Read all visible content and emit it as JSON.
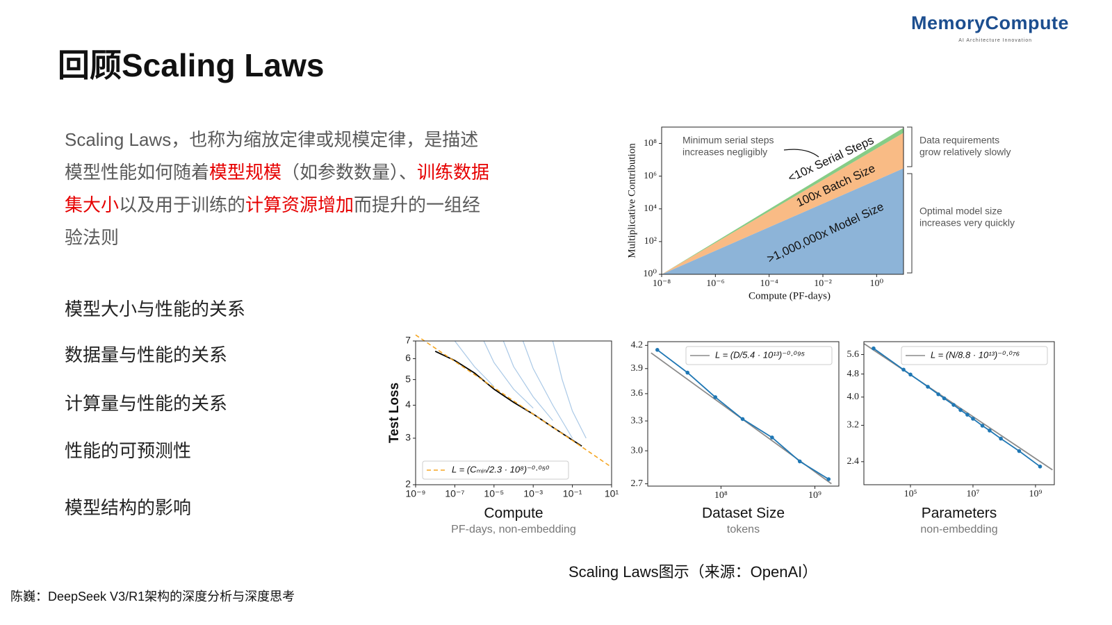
{
  "header": {
    "title": "回顾Scaling Laws",
    "logo": "MemoryCompute",
    "logo_tagline": "AI Architecture Innovation"
  },
  "intro": {
    "segments": [
      {
        "text": "Scaling Laws，也称为缩放定律或规模定律，是描述模型性能如何随着",
        "highlight": false
      },
      {
        "text": "模型规模",
        "highlight": true
      },
      {
        "text": "（如参数数量）、",
        "highlight": false
      },
      {
        "text": "训练数据集大小",
        "highlight": true
      },
      {
        "text": "以及用于训练的",
        "highlight": false
      },
      {
        "text": "计算资源增加",
        "highlight": true
      },
      {
        "text": "而提升的一组经验法则",
        "highlight": false
      }
    ]
  },
  "topics": [
    "模型大小与性能的关系",
    "数据量与性能的关系",
    "计算量与性能的关系",
    "性能的可预测性",
    "模型结构的影响"
  ],
  "caption": "Scaling Laws图示（来源：OpenAI）",
  "footer": "陈巍：DeepSeek V3/R1架构的深度分析与深度思考",
  "chart_data": [
    {
      "type": "area",
      "stacked": true,
      "xlog": true,
      "ylog": true,
      "xlabel": "Compute (PF-days)",
      "ylabel": "Multiplicative Contribution",
      "x": [
        1e-08,
        10
      ],
      "series": [
        {
          "name": ">1,000,000x Model Size",
          "color": "#8db4d8",
          "values": [
            1,
            3000000
          ]
        },
        {
          "name": "100x Batch Size",
          "color": "#f9bb85",
          "values": [
            1,
            150
          ]
        },
        {
          "name": "<10x Serial Steps",
          "color": "#86cc86",
          "values": [
            1,
            2
          ]
        }
      ],
      "annotations": [
        [
          "Minimum serial steps",
          "increases negligibly"
        ],
        [
          "Data requirements",
          "grow relatively slowly"
        ],
        [
          "Optimal model size",
          "increases very quickly"
        ]
      ],
      "xlim": [
        1e-08,
        10
      ],
      "ylim": [
        1,
        1000000000.0
      ],
      "xticks": [
        {
          "value": 1e-08,
          "label": "10⁻⁸"
        },
        {
          "value": 1e-06,
          "label": "10⁻⁶"
        },
        {
          "value": 0.0001,
          "label": "10⁻⁴"
        },
        {
          "value": 0.01,
          "label": "10⁻²"
        },
        {
          "value": 1,
          "label": "10⁰"
        }
      ],
      "yticks": [
        {
          "value": 1,
          "label": "10⁰"
        },
        {
          "value": 100,
          "label": "10²"
        },
        {
          "value": 10000,
          "label": "10⁴"
        },
        {
          "value": 1000000,
          "label": "10⁶"
        },
        {
          "value": 100000000,
          "label": "10⁸"
        }
      ]
    },
    {
      "type": "line",
      "xlog": true,
      "ylog": true,
      "legend": "lower left",
      "xlabel": "Compute",
      "xsublabel": "PF-days, non-embedding",
      "ylabel": "Test Loss",
      "series": [
        {
          "color": "#a9c8e6",
          "x": [
            1e-07,
            1e-06,
            1e-05
          ],
          "values": [
            7,
            5.6,
            4.7
          ]
        },
        {
          "color": "#a9c8e6",
          "x": [
            3e-06,
            1e-05,
            0.0001,
            0.001
          ],
          "values": [
            7,
            5.8,
            4.6,
            3.9
          ]
        },
        {
          "color": "#a9c8e6",
          "x": [
            3e-05,
            0.0001,
            0.001,
            0.01
          ],
          "values": [
            7,
            5.6,
            4.3,
            3.5
          ]
        },
        {
          "color": "#a9c8e6",
          "x": [
            0.0003,
            0.001,
            0.01,
            0.1
          ],
          "values": [
            7,
            5.5,
            4,
            3
          ]
        },
        {
          "color": "#a9c8e6",
          "x": [
            0.01,
            0.03,
            0.1,
            0.5
          ],
          "values": [
            7,
            5,
            3.8,
            3
          ]
        },
        {
          "color": "#000000",
          "x": [
            1e-08,
            1e-07,
            1e-06,
            1e-05,
            0.0001,
            0.001,
            0.01,
            0.1,
            0.3
          ],
          "values": [
            6.4,
            5.9,
            5.3,
            4.6,
            4.1,
            3.7,
            3.3,
            2.95,
            2.8
          ]
        },
        {
          "name": "L = (Cₘᵢₙ/2.3 · 10⁸)⁻⁰·⁰⁵⁰",
          "color": "#f5a623",
          "dash": true,
          "x": [
            1e-09,
            1e-07,
            1e-05,
            0.001,
            0.1,
            10
          ],
          "values": [
            7.38,
            5.86,
            4.66,
            3.7,
            2.94,
            2.33
          ]
        }
      ],
      "xlim": [
        1e-09,
        10
      ],
      "ylim": [
        2,
        7
      ],
      "xticks": [
        {
          "value": 1e-09,
          "label": "10⁻⁹"
        },
        {
          "value": 1e-07,
          "label": "10⁻⁷"
        },
        {
          "value": 1e-05,
          "label": "10⁻⁵"
        },
        {
          "value": 0.001,
          "label": "10⁻³"
        },
        {
          "value": 0.1,
          "label": "10⁻¹"
        },
        {
          "value": 10,
          "label": "10¹"
        }
      ],
      "yticks": [
        2,
        3,
        4,
        5,
        6,
        7
      ]
    },
    {
      "type": "line",
      "xlog": true,
      "ylog": true,
      "legend": "upper right",
      "xlabel": "Dataset Size",
      "xsublabel": "tokens",
      "series": [
        {
          "name": "L = (D/5.4 · 10¹³)⁻⁰·⁰⁹⁵",
          "color": "#8a8a8a",
          "x": [
            18000000,
            1500000000
          ],
          "values": [
            4.1,
            2.7
          ]
        },
        {
          "color": "#1f77b4",
          "marker": true,
          "x": [
            21000000,
            44000000,
            87000000,
            170000000,
            350000000,
            690000000,
            1400000000
          ],
          "values": [
            4.14,
            3.85,
            3.56,
            3.32,
            3.13,
            2.9,
            2.74
          ]
        }
      ],
      "xlim": [
        16600000,
        1800000000
      ],
      "ylim": [
        2.68,
        4.25
      ],
      "xticks": [
        {
          "value": 100000000,
          "label": "10⁸"
        },
        {
          "value": 1000000000,
          "label": "10⁹"
        }
      ],
      "yticks": [
        2.7,
        {
          "value": 3,
          "label": "3.0"
        },
        3.3,
        3.6,
        3.9,
        4.2
      ]
    },
    {
      "type": "line",
      "xlog": true,
      "ylog": true,
      "legend": "upper right",
      "xlabel": "Parameters",
      "xsublabel": "non-embedding",
      "series": [
        {
          "name": "L = (N/8.8 · 10¹³)⁻⁰·⁰⁷⁶",
          "color": "#8a8a8a",
          "x": [
            3300,
            3500000000
          ],
          "values": [
            6.1,
            2.25
          ]
        },
        {
          "color": "#1f77b4",
          "marker": true,
          "x": [
            6600,
            60000,
            100000,
            360000,
            780000,
            1200000,
            2400000,
            4000000,
            6600000,
            10000000,
            20000000,
            34000000,
            78000000,
            300000000,
            1400000000
          ],
          "values": [
            5.88,
            4.97,
            4.78,
            4.34,
            4.09,
            3.96,
            3.76,
            3.61,
            3.48,
            3.37,
            3.19,
            3.07,
            2.88,
            2.61,
            2.31
          ]
        }
      ],
      "xlim": [
        3236,
        4000000000
      ],
      "ylim": [
        2,
        6.2
      ],
      "xticks": [
        {
          "value": 100000,
          "label": "10⁵"
        },
        {
          "value": 10000000,
          "label": "10⁷"
        },
        {
          "value": 1000000000,
          "label": "10⁹"
        }
      ],
      "yticks": [
        2.4,
        3.2,
        {
          "value": 4,
          "label": "4.0"
        },
        4.8,
        5.6
      ]
    }
  ]
}
